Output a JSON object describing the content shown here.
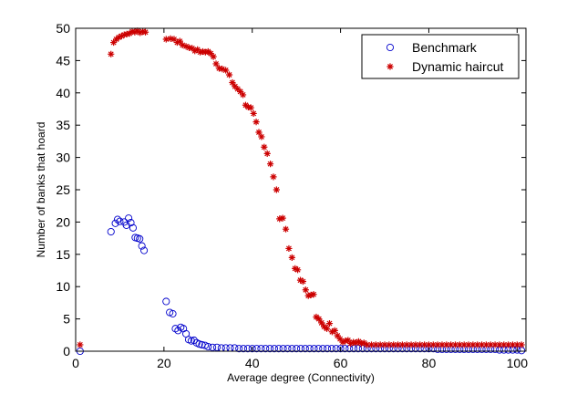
{
  "chart_data": {
    "type": "scatter",
    "title": "",
    "xlabel": "Average degree (Connectivity)",
    "ylabel": "Number of banks that hoard",
    "xlim": [
      0,
      102
    ],
    "ylim": [
      0,
      50
    ],
    "xticks": [
      0,
      20,
      40,
      60,
      80,
      100
    ],
    "yticks": [
      0,
      5,
      10,
      15,
      20,
      25,
      30,
      35,
      40,
      45,
      50
    ],
    "grid": false,
    "legend_position": "top-right",
    "series": [
      {
        "name": "Benchmark",
        "marker": "circle",
        "color": "#0000cc",
        "points": [
          [
            1,
            0
          ],
          [
            8,
            18.5
          ],
          [
            9,
            19.8
          ],
          [
            9.5,
            20.4
          ],
          [
            10,
            20.1
          ],
          [
            11,
            20.0
          ],
          [
            11.5,
            19.5
          ],
          [
            12,
            20.6
          ],
          [
            12.5,
            19.9
          ],
          [
            13,
            19.1
          ],
          [
            13.5,
            17.6
          ],
          [
            14,
            17.5
          ],
          [
            14.5,
            17.4
          ],
          [
            15,
            16.3
          ],
          [
            15.5,
            15.6
          ],
          [
            20.5,
            7.7
          ],
          [
            21.3,
            6.0
          ],
          [
            22,
            5.8
          ],
          [
            22.6,
            3.5
          ],
          [
            23.2,
            3.2
          ],
          [
            23.8,
            3.7
          ],
          [
            24.4,
            3.5
          ],
          [
            25,
            2.7
          ],
          [
            25.6,
            1.8
          ],
          [
            26.2,
            1.6
          ],
          [
            26.8,
            1.7
          ],
          [
            27.4,
            1.3
          ],
          [
            28,
            1.1
          ],
          [
            28.6,
            1.0
          ],
          [
            29.3,
            0.9
          ],
          [
            30,
            0.7
          ],
          [
            31,
            0.6
          ],
          [
            32,
            0.6
          ],
          [
            33,
            0.5
          ],
          [
            34,
            0.5
          ],
          [
            35,
            0.5
          ],
          [
            36,
            0.5
          ],
          [
            37,
            0.4
          ],
          [
            38,
            0.4
          ],
          [
            39,
            0.4
          ],
          [
            40,
            0.4
          ],
          [
            41,
            0.4
          ],
          [
            42,
            0.4
          ],
          [
            43,
            0.4
          ],
          [
            44,
            0.4
          ],
          [
            45,
            0.4
          ],
          [
            46,
            0.4
          ],
          [
            47,
            0.4
          ],
          [
            48,
            0.4
          ],
          [
            49,
            0.4
          ],
          [
            50,
            0.4
          ],
          [
            51,
            0.4
          ],
          [
            52,
            0.4
          ],
          [
            53,
            0.4
          ],
          [
            54,
            0.4
          ],
          [
            55,
            0.4
          ],
          [
            56,
            0.4
          ],
          [
            57,
            0.4
          ],
          [
            58,
            0.4
          ],
          [
            59,
            0.4
          ],
          [
            60,
            0.4
          ],
          [
            61,
            0.4
          ],
          [
            62,
            0.4
          ],
          [
            63,
            0.4
          ],
          [
            64,
            0.4
          ],
          [
            65,
            0.4
          ],
          [
            66,
            0.4
          ],
          [
            67,
            0.4
          ],
          [
            68,
            0.4
          ],
          [
            69,
            0.4
          ],
          [
            70,
            0.4
          ],
          [
            71,
            0.4
          ],
          [
            72,
            0.4
          ],
          [
            73,
            0.4
          ],
          [
            74,
            0.4
          ],
          [
            75,
            0.4
          ],
          [
            76,
            0.4
          ],
          [
            77,
            0.4
          ],
          [
            78,
            0.4
          ],
          [
            79,
            0.4
          ],
          [
            80,
            0.4
          ],
          [
            81,
            0.4
          ],
          [
            82,
            0.3
          ],
          [
            83,
            0.3
          ],
          [
            84,
            0.3
          ],
          [
            85,
            0.3
          ],
          [
            86,
            0.3
          ],
          [
            87,
            0.3
          ],
          [
            88,
            0.3
          ],
          [
            89,
            0.3
          ],
          [
            90,
            0.3
          ],
          [
            91,
            0.3
          ],
          [
            92,
            0.3
          ],
          [
            93,
            0.3
          ],
          [
            94,
            0.3
          ],
          [
            95,
            0.3
          ],
          [
            96,
            0.2
          ],
          [
            97,
            0.2
          ],
          [
            98,
            0.2
          ],
          [
            99,
            0.2
          ],
          [
            100,
            0.2
          ],
          [
            101,
            0.1
          ]
        ]
      },
      {
        "name": "Dynamic haircut",
        "marker": "star",
        "color": "#cc0000",
        "points": [
          [
            1,
            1.0
          ],
          [
            8,
            46.0
          ],
          [
            8.6,
            47.8
          ],
          [
            9.2,
            48.3
          ],
          [
            9.8,
            48.6
          ],
          [
            10.4,
            48.8
          ],
          [
            11,
            49.0
          ],
          [
            11.6,
            49.1
          ],
          [
            12.2,
            49.2
          ],
          [
            12.8,
            49.5
          ],
          [
            13.4,
            49.4
          ],
          [
            14,
            49.6
          ],
          [
            14.6,
            49.3
          ],
          [
            15.2,
            49.5
          ],
          [
            15.8,
            49.4
          ],
          [
            20.5,
            48.3
          ],
          [
            21.5,
            48.4
          ],
          [
            22.3,
            48.3
          ],
          [
            23,
            47.8
          ],
          [
            23.6,
            48.0
          ],
          [
            24.2,
            47.4
          ],
          [
            25,
            47.2
          ],
          [
            25.7,
            47.0
          ],
          [
            26.4,
            46.9
          ],
          [
            27,
            46.5
          ],
          [
            27.6,
            46.7
          ],
          [
            28.2,
            46.3
          ],
          [
            28.8,
            46.4
          ],
          [
            29.4,
            46.3
          ],
          [
            30,
            46.4
          ],
          [
            30.6,
            46.1
          ],
          [
            31.2,
            45.6
          ],
          [
            31.8,
            44.5
          ],
          [
            32.5,
            43.8
          ],
          [
            33.2,
            43.7
          ],
          [
            34,
            43.5
          ],
          [
            34.8,
            42.8
          ],
          [
            35.5,
            41.6
          ],
          [
            36.1,
            41.0
          ],
          [
            36.7,
            40.6
          ],
          [
            37.3,
            40.2
          ],
          [
            37.9,
            39.7
          ],
          [
            38.5,
            38.1
          ],
          [
            39.1,
            37.8
          ],
          [
            39.7,
            37.7
          ],
          [
            40.3,
            36.8
          ],
          [
            40.9,
            35.5
          ],
          [
            41.5,
            33.9
          ],
          [
            42.1,
            33.2
          ],
          [
            42.7,
            31.6
          ],
          [
            43.4,
            30.6
          ],
          [
            44.1,
            29.0
          ],
          [
            44.8,
            27.0
          ],
          [
            45.5,
            25.0
          ],
          [
            46.2,
            20.5
          ],
          [
            46.9,
            20.6
          ],
          [
            47.6,
            18.9
          ],
          [
            48.3,
            15.9
          ],
          [
            49,
            14.5
          ],
          [
            49.7,
            12.8
          ],
          [
            50.3,
            12.6
          ],
          [
            50.9,
            11.0
          ],
          [
            51.5,
            10.8
          ],
          [
            52.1,
            9.5
          ],
          [
            52.7,
            8.6
          ],
          [
            53.3,
            8.7
          ],
          [
            53.9,
            8.8
          ],
          [
            54.5,
            5.3
          ],
          [
            55.1,
            5.0
          ],
          [
            55.7,
            4.4
          ],
          [
            56.3,
            3.8
          ],
          [
            56.9,
            3.5
          ],
          [
            57.5,
            4.3
          ],
          [
            58.1,
            3.0
          ],
          [
            58.7,
            3.2
          ],
          [
            59.3,
            2.4
          ],
          [
            59.9,
            1.9
          ],
          [
            60.5,
            1.4
          ],
          [
            61.1,
            1.6
          ],
          [
            61.7,
            1.7
          ],
          [
            62.3,
            1.2
          ],
          [
            62.9,
            1.4
          ],
          [
            63.5,
            1.3
          ],
          [
            64.1,
            1.5
          ],
          [
            64.7,
            1.2
          ],
          [
            65.3,
            1.3
          ],
          [
            66,
            1.0
          ],
          [
            67,
            1.0
          ],
          [
            68,
            1.0
          ],
          [
            69,
            1.0
          ],
          [
            70,
            1.0
          ],
          [
            71,
            1.0
          ],
          [
            72,
            1.0
          ],
          [
            73,
            1.0
          ],
          [
            74,
            1.0
          ],
          [
            75,
            1.0
          ],
          [
            76,
            1.0
          ],
          [
            77,
            1.0
          ],
          [
            78,
            1.0
          ],
          [
            79,
            1.0
          ],
          [
            80,
            1.0
          ],
          [
            81,
            1.0
          ],
          [
            82,
            1.0
          ],
          [
            83,
            1.0
          ],
          [
            84,
            1.0
          ],
          [
            85,
            1.0
          ],
          [
            86,
            1.0
          ],
          [
            87,
            1.0
          ],
          [
            88,
            1.0
          ],
          [
            89,
            1.0
          ],
          [
            90,
            1.0
          ],
          [
            91,
            1.0
          ],
          [
            92,
            1.0
          ],
          [
            93,
            1.0
          ],
          [
            94,
            1.0
          ],
          [
            95,
            1.0
          ],
          [
            96,
            1.0
          ],
          [
            97,
            1.0
          ],
          [
            98,
            1.0
          ],
          [
            99,
            1.0
          ],
          [
            100,
            1.0
          ],
          [
            101,
            1.0
          ]
        ]
      }
    ]
  }
}
